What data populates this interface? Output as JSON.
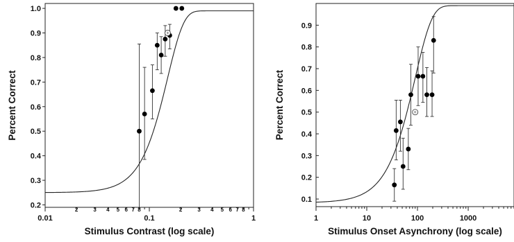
{
  "chart_data": [
    {
      "type": "scatter",
      "title": "",
      "xlabel": "Stimulus Contrast (log scale)",
      "ylabel": "Percent Correct",
      "xscale": "log",
      "xlim": [
        0.01,
        1
      ],
      "ylim": [
        0.19,
        1.02
      ],
      "grid": false,
      "x_tick_labels": [
        {
          "value": 0.01,
          "label": "0.01",
          "major": true
        },
        {
          "value": 0.02,
          "label": "2"
        },
        {
          "value": 0.03,
          "label": "3"
        },
        {
          "value": 0.04,
          "label": "4"
        },
        {
          "value": 0.05,
          "label": "5"
        },
        {
          "value": 0.06,
          "label": "6"
        },
        {
          "value": 0.07,
          "label": "7"
        },
        {
          "value": 0.08,
          "label": "8"
        },
        {
          "value": 0.1,
          "label": "0.1",
          "major": true
        },
        {
          "value": 0.2,
          "label": "2"
        },
        {
          "value": 0.3,
          "label": "3"
        },
        {
          "value": 0.4,
          "label": "4"
        },
        {
          "value": 0.5,
          "label": "5"
        },
        {
          "value": 0.6,
          "label": "6"
        },
        {
          "value": 0.7,
          "label": "7"
        },
        {
          "value": 0.8,
          "label": "8"
        },
        {
          "value": 1,
          "label": "1",
          "major": true
        }
      ],
      "y_ticks": [
        0.2,
        0.3,
        0.4,
        0.5,
        0.6,
        0.7,
        0.8,
        0.9,
        1.0
      ],
      "y_tick_labels": [
        "0.2",
        "0.3",
        "0.4",
        "0.5",
        "0.6",
        "0.7",
        "0.8",
        "0.9",
        "1.0"
      ],
      "points": [
        {
          "x": 0.08,
          "y": 0.5,
          "err_low": 0.19,
          "err_high": 0.855
        },
        {
          "x": 0.09,
          "y": 0.57,
          "err_low": 0.385,
          "err_high": 0.76
        },
        {
          "x": 0.107,
          "y": 0.665,
          "err_low": 0.55,
          "err_high": 0.77
        },
        {
          "x": 0.119,
          "y": 0.85,
          "err_low": 0.75,
          "err_high": 0.9
        },
        {
          "x": 0.13,
          "y": 0.81,
          "err_low": 0.735,
          "err_high": 0.885
        },
        {
          "x": 0.142,
          "y": 0.875,
          "err_low": 0.805,
          "err_high": 0.93
        },
        {
          "x": 0.157,
          "y": 0.89,
          "err_low": 0.835,
          "err_high": 0.935
        },
        {
          "x": 0.18,
          "y": 1.0
        },
        {
          "x": 0.205,
          "y": 1.0
        }
      ],
      "threshold_point": {
        "x": 0.15,
        "y": 0.9,
        "marker": "open-circle"
      },
      "fit_curve": {
        "type": "weibull",
        "lower_asymptote": 0.25,
        "upper_asymptote": 0.99,
        "threshold": 0.15,
        "slope": 2.8
      }
    },
    {
      "type": "scatter",
      "title": "",
      "xlabel": "Stimulus Onset Asynchrony (log scale)",
      "ylabel": "Percent Correct",
      "xscale": "log",
      "xlim": [
        1,
        8000
      ],
      "ylim": [
        0.065,
        1.0
      ],
      "grid": false,
      "x_tick_labels": [
        {
          "value": 1,
          "label": "1",
          "major": true
        },
        {
          "value": 10,
          "label": "10",
          "major": true
        },
        {
          "value": 100,
          "label": "100",
          "major": true
        },
        {
          "value": 1000,
          "label": "1000",
          "major": true
        }
      ],
      "y_ticks": [
        0.1,
        0.2,
        0.3,
        0.4,
        0.5,
        0.6,
        0.7,
        0.8,
        0.9
      ],
      "y_tick_labels": [
        "0.1",
        "0.2",
        "0.3",
        "0.4",
        "0.5",
        "0.6",
        "0.7",
        "0.8",
        "0.9"
      ],
      "points": [
        {
          "x": 35,
          "y": 0.165,
          "err_low": 0.09,
          "err_high": 0.24
        },
        {
          "x": 38,
          "y": 0.415,
          "err_low": 0.28,
          "err_high": 0.555
        },
        {
          "x": 46,
          "y": 0.455,
          "err_low": 0.32,
          "err_high": 0.555
        },
        {
          "x": 52,
          "y": 0.25,
          "err_low": 0.145,
          "err_high": 0.38
        },
        {
          "x": 66,
          "y": 0.33,
          "err_low": 0.235,
          "err_high": 0.425
        },
        {
          "x": 74,
          "y": 0.58,
          "err_low": 0.44,
          "err_high": 0.72
        },
        {
          "x": 103,
          "y": 0.665,
          "err_low": 0.53,
          "err_high": 0.8
        },
        {
          "x": 128,
          "y": 0.665,
          "err_low": 0.545,
          "err_high": 0.775
        },
        {
          "x": 153,
          "y": 0.58,
          "err_low": 0.48,
          "err_high": 0.705
        },
        {
          "x": 194,
          "y": 0.58,
          "err_low": 0.48,
          "err_high": 0.69
        },
        {
          "x": 208,
          "y": 0.83,
          "err_low": 0.68,
          "err_high": 0.94
        }
      ],
      "threshold_point": {
        "x": 90,
        "y": 0.5,
        "marker": "open-circle"
      },
      "fit_curve": {
        "type": "weibull",
        "lower_asymptote": 0.083,
        "upper_asymptote": 0.99,
        "threshold": 90,
        "slope": 1.3
      }
    }
  ]
}
